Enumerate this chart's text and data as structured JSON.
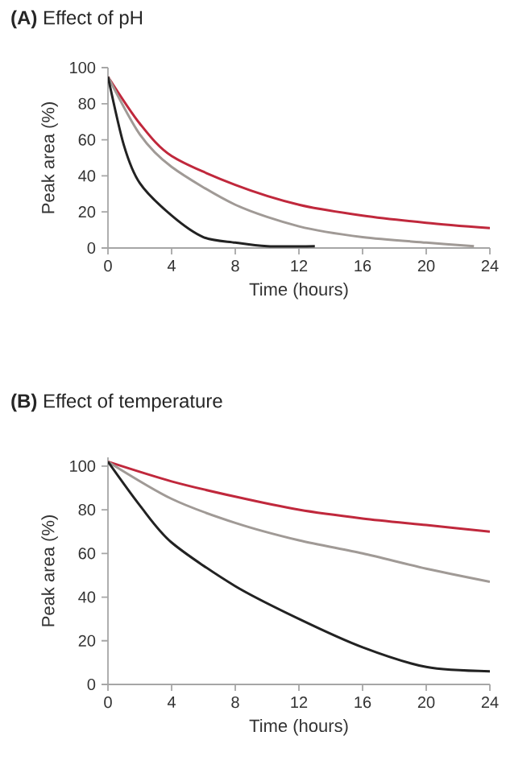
{
  "chart_data": [
    {
      "type": "line",
      "title": "**(A)** Effect of pH",
      "xlabel": "Time (hours)",
      "ylabel": "Peak area (%)",
      "xlim": [
        0,
        24
      ],
      "ylim": [
        0,
        100
      ],
      "xticks": [
        0,
        4,
        8,
        12,
        16,
        20,
        24
      ],
      "yticks": [
        0,
        20,
        40,
        60,
        80,
        100
      ],
      "grid": false,
      "marker": "none",
      "series": [
        {
          "color": "#c0283c",
          "x": [
            0,
            2,
            4,
            8,
            12,
            16,
            20,
            24
          ],
          "values": [
            95,
            69,
            51,
            35,
            24,
            18,
            14,
            11
          ]
        },
        {
          "color": "#a09a96",
          "x": [
            0,
            2,
            4,
            8,
            12,
            16,
            20,
            23
          ],
          "values": [
            95,
            63,
            45,
            24,
            12,
            6,
            3,
            1
          ]
        },
        {
          "color": "#222222",
          "x": [
            0,
            1,
            2,
            4,
            6,
            8,
            10,
            13
          ],
          "values": [
            95,
            57,
            36,
            18,
            6,
            3,
            1,
            1
          ]
        }
      ]
    },
    {
      "type": "line",
      "title": "**(B)** Effect of temperature",
      "xlabel": "Time (hours)",
      "ylabel": "Peak area (%)",
      "xlim": [
        0,
        24
      ],
      "ylim": [
        0,
        104
      ],
      "xticks": [
        0,
        4,
        8,
        12,
        16,
        20,
        24
      ],
      "yticks": [
        0,
        20,
        40,
        60,
        80,
        100
      ],
      "grid": false,
      "marker": "none",
      "series": [
        {
          "color": "#c0283c",
          "x": [
            0,
            4,
            8,
            12,
            16,
            20,
            24
          ],
          "values": [
            102,
            93,
            86,
            80,
            76,
            73,
            70
          ]
        },
        {
          "color": "#a09a96",
          "x": [
            0,
            4,
            8,
            12,
            16,
            20,
            24
          ],
          "values": [
            102,
            85,
            74,
            66,
            60,
            53,
            47
          ]
        },
        {
          "color": "#222222",
          "x": [
            0,
            2,
            4,
            8,
            12,
            16,
            20,
            24
          ],
          "values": [
            102,
            82,
            65,
            45,
            30,
            17,
            8,
            6
          ]
        }
      ]
    }
  ]
}
